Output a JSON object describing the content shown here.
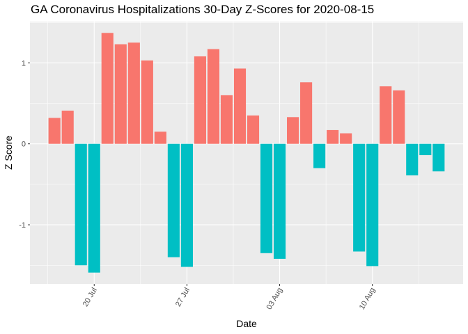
{
  "chart_data": {
    "type": "bar",
    "title": "GA Coronavirus Hospitalizations 30-Day Z-Scores for 2020-08-15",
    "xlabel": "Date",
    "ylabel": "Z Score",
    "x": [
      "2020-07-17",
      "2020-07-18",
      "2020-07-19",
      "2020-07-20",
      "2020-07-21",
      "2020-07-22",
      "2020-07-23",
      "2020-07-24",
      "2020-07-25",
      "2020-07-26",
      "2020-07-27",
      "2020-07-28",
      "2020-07-29",
      "2020-07-30",
      "2020-07-31",
      "2020-08-01",
      "2020-08-02",
      "2020-08-03",
      "2020-08-04",
      "2020-08-05",
      "2020-08-06",
      "2020-08-07",
      "2020-08-08",
      "2020-08-09",
      "2020-08-10",
      "2020-08-11",
      "2020-08-12",
      "2020-08-13",
      "2020-08-14",
      "2020-08-15"
    ],
    "values": [
      0.32,
      0.41,
      -1.5,
      -1.59,
      1.37,
      1.23,
      1.25,
      1.03,
      0.15,
      -1.4,
      -1.52,
      1.08,
      1.17,
      0.6,
      0.93,
      0.35,
      -1.35,
      -1.42,
      0.33,
      0.76,
      -0.3,
      0.17,
      0.13,
      -1.33,
      -1.51,
      0.71,
      0.66,
      -0.39,
      -0.14,
      -0.34
    ],
    "ylim": [
      -1.73,
      1.51
    ],
    "y_ticks": [
      1,
      0,
      -1
    ],
    "y_tick_labels": [
      "1",
      "0",
      "-1"
    ],
    "x_ticks": [
      "2020-07-20",
      "2020-07-27",
      "2020-08-03",
      "2020-08-10"
    ],
    "x_tick_labels": [
      "20 Jul",
      "27 Jul",
      "03 Aug",
      "10 Aug"
    ],
    "grid": true,
    "colors": {
      "positive": "#F8766D",
      "negative": "#00BFC4",
      "panel": "#EBEBEB",
      "grid": "#FFFFFF"
    }
  }
}
